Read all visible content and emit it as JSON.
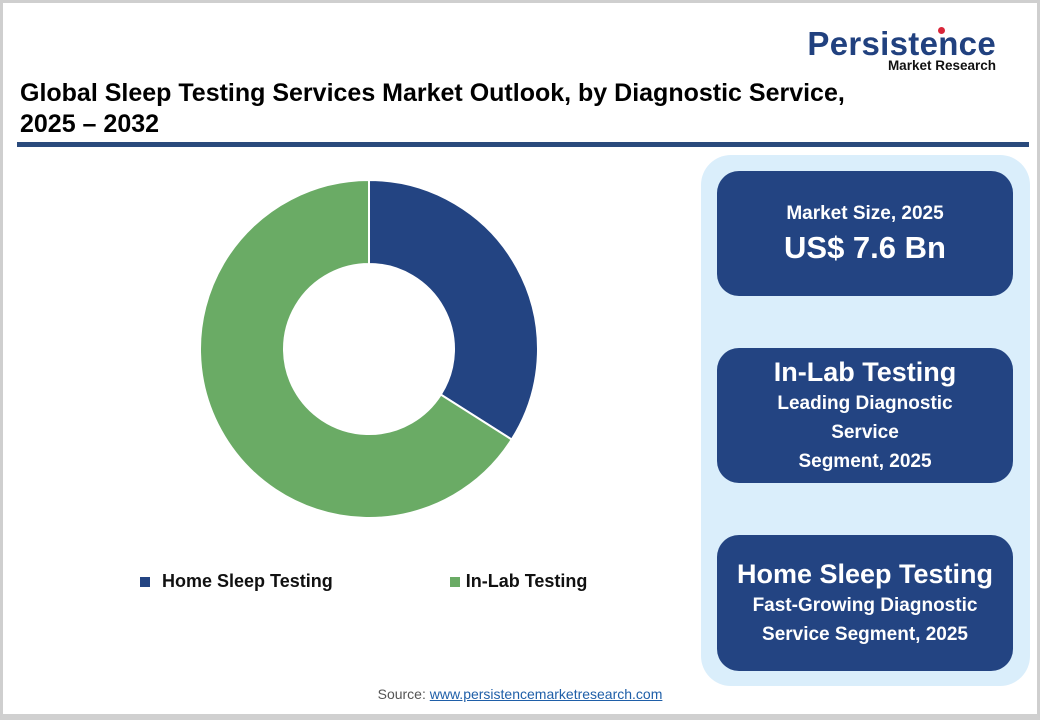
{
  "logo": {
    "main": "Persistence",
    "sub": "Market Research"
  },
  "title": {
    "line1": "Global Sleep Testing Services Market Outlook, by Diagnostic Service,",
    "line2": "2025 – 2032"
  },
  "legend": {
    "items": [
      {
        "label": "Home Sleep Testing",
        "color": "#234482"
      },
      {
        "label": "In-Lab Testing",
        "color": "#6aab65"
      }
    ]
  },
  "cards": {
    "market_size": {
      "label": "Market Size, 2025",
      "value": "US$ 7.6 Bn"
    },
    "leading": {
      "heading": "In-Lab Testing",
      "line1": "Leading Diagnostic",
      "line2": "Service",
      "line3": "Segment, 2025"
    },
    "fastest": {
      "heading": "Home Sleep Testing",
      "line1": "Fast-Growing Diagnostic",
      "line2": "Service Segment, 2025"
    }
  },
  "source": {
    "prefix": "Source: ",
    "link": "www.persistencemarketresearch.com"
  },
  "colors": {
    "brand_blue": "#234482",
    "green": "#6aab65",
    "panel_bg": "#daeefb",
    "rule": "#2a4a7c"
  },
  "chart_data": {
    "type": "pie",
    "subtype": "donut",
    "title": "Global Sleep Testing Services Market Outlook, by Diagnostic Service, 2025 – 2032",
    "categories": [
      "Home Sleep Testing",
      "In-Lab Testing"
    ],
    "values": [
      34,
      66
    ],
    "unit": "% share (estimated from slice angles)",
    "colors": [
      "#234482",
      "#6aab65"
    ],
    "start_angle_deg": 0,
    "direction": "clockwise",
    "legend_position": "bottom",
    "annotations": [
      "Market Size, 2025: US$ 7.6 Bn",
      "In-Lab Testing: Leading Diagnostic Service Segment, 2025",
      "Home Sleep Testing: Fast-Growing Diagnostic Service Segment, 2025"
    ]
  }
}
